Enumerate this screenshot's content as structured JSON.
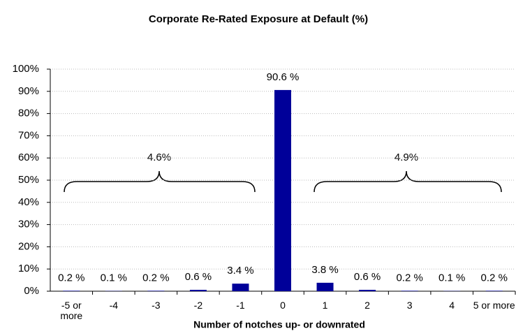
{
  "chart_data": {
    "type": "bar",
    "title": "Corporate Re-Rated Exposure at Default (%)",
    "x_label": "Number of notches up- or downrated",
    "categories": [
      "-5 or more",
      "-4",
      "-3",
      "-2",
      "-1",
      "0",
      "1",
      "2",
      "3",
      "4",
      "5 or more"
    ],
    "values": [
      0.2,
      0.1,
      0.2,
      0.6,
      3.4,
      90.6,
      3.8,
      0.6,
      0.2,
      0.1,
      0.2
    ],
    "value_labels": [
      "0.2 %",
      "0.1 %",
      "0.2 %",
      "0.6 %",
      "3.4 %",
      "90.6 %",
      "3.8 %",
      "0.6 %",
      "0.2 %",
      "0.1 %",
      "0.2 %"
    ],
    "color": "#000099",
    "ylim": [
      0,
      100
    ],
    "yticks": [
      {
        "value": 0,
        "label": "0%"
      },
      {
        "value": 10,
        "label": "10%"
      },
      {
        "value": 20,
        "label": "20%"
      },
      {
        "value": 30,
        "label": "30%"
      },
      {
        "value": 40,
        "label": "40%"
      },
      {
        "value": 50,
        "label": "50%"
      },
      {
        "value": 60,
        "label": "60%"
      },
      {
        "value": 70,
        "label": "70%"
      },
      {
        "value": 80,
        "label": "80%"
      },
      {
        "value": 90,
        "label": "90%"
      },
      {
        "value": 100,
        "label": "100%"
      }
    ],
    "grid": true,
    "annotations": [
      {
        "text": "4.6%"
      },
      {
        "text": "4.9%"
      }
    ]
  }
}
